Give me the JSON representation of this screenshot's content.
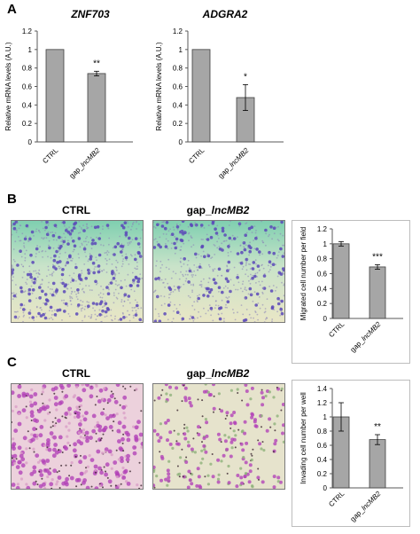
{
  "panels": {
    "A": {
      "letter": "A",
      "charts": [
        {
          "gene": "ZNF703",
          "ylabel": "Relative mRNA levels (A.U.)",
          "yticks": [
            "0",
            "0.2",
            "0.4",
            "0.6",
            "0.8",
            "1",
            "1.2"
          ],
          "categories": [
            "CTRL",
            "gap_",
            "lncMB2"
          ],
          "significance": "**"
        },
        {
          "gene": "ADGRA2",
          "ylabel": "Relative mRNA levels (A.U.)",
          "yticks": [
            "0",
            "0.2",
            "0.4",
            "0.6",
            "0.8",
            "1",
            "1.2"
          ],
          "categories": [
            "CTRL",
            "gap_",
            "lncMB2"
          ],
          "significance": "*"
        }
      ]
    },
    "B": {
      "letter": "B",
      "image_labels": {
        "ctrl": "CTRL",
        "gap_prefix": "gap_",
        "gap_italic": "lncMB2"
      },
      "chart": {
        "ylabel": "Migrated cell number per field",
        "yticks": [
          "0",
          "0.2",
          "0.4",
          "0.6",
          "0.8",
          "1",
          "1.2"
        ],
        "categories": [
          "CTRL",
          "gap_",
          "lncMB2"
        ],
        "significance": "***"
      }
    },
    "C": {
      "letter": "C",
      "image_labels": {
        "ctrl": "CTRL",
        "gap_prefix": "gap_",
        "gap_italic": "lncMB2"
      },
      "chart": {
        "ylabel": "Invading cell number per well",
        "yticks": [
          "0",
          "0.2",
          "0.4",
          "0.6",
          "0.8",
          "1",
          "1.2",
          "1.4"
        ],
        "categories": [
          "CTRL",
          "gap_",
          "lncMB2"
        ],
        "significance": "**"
      }
    }
  },
  "colors": {
    "bar_fill": "#a6a6a6",
    "bar_stroke": "#3f3f3f",
    "axis": "#595959",
    "migration_bg": "#e9e6c6",
    "migration_cell": "#5b48b8",
    "migration_tint": "#7fcfb0",
    "invasion_bg": "#ecd1dc",
    "invasion_cell": "#b344b8",
    "invasion_dark": "#3b2530",
    "invasion_green": "#8fb27a"
  },
  "chart_data": [
    {
      "type": "bar",
      "title": "ZNF703",
      "ylabel": "Relative mRNA levels (A.U.)",
      "categories": [
        "CTRL",
        "gap_lncMB2"
      ],
      "values": [
        1.0,
        0.74
      ],
      "errors": [
        0,
        0.025
      ],
      "ylim": [
        0,
        1.2
      ],
      "annotations": [
        "**"
      ]
    },
    {
      "type": "bar",
      "title": "ADGRA2",
      "ylabel": "Relative mRNA levels (A.U.)",
      "categories": [
        "CTRL",
        "gap_lncMB2"
      ],
      "values": [
        1.0,
        0.48
      ],
      "errors": [
        0,
        0.14
      ],
      "ylim": [
        0,
        1.2
      ],
      "annotations": [
        "*"
      ]
    },
    {
      "type": "bar",
      "ylabel": "Migrated cell number per field",
      "categories": [
        "CTRL",
        "gap_lncMB2"
      ],
      "values": [
        1.0,
        0.69
      ],
      "errors": [
        0.03,
        0.03
      ],
      "ylim": [
        0,
        1.2
      ],
      "annotations": [
        "***"
      ]
    },
    {
      "type": "bar",
      "ylabel": "Invading cell number per well",
      "categories": [
        "CTRL",
        "gap_lncMB2"
      ],
      "values": [
        1.0,
        0.68
      ],
      "errors": [
        0.2,
        0.07
      ],
      "ylim": [
        0,
        1.4
      ],
      "annotations": [
        "**"
      ]
    }
  ]
}
